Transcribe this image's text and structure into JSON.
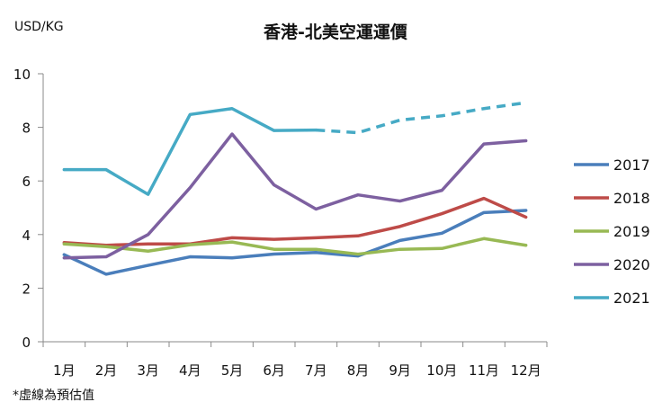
{
  "chart_data": {
    "type": "line",
    "title": "香港-北美空運運價",
    "ylabel": "USD/KG",
    "xlabel": "",
    "note": "*虛線為預估值",
    "categories": [
      "1月",
      "2月",
      "3月",
      "4月",
      "5月",
      "6月",
      "7月",
      "8月",
      "9月",
      "10月",
      "11月",
      "12月"
    ],
    "ylim": [
      0,
      10
    ],
    "yticks": [
      0,
      2,
      4,
      6,
      8,
      10
    ],
    "grid": false,
    "legend_position": "right",
    "series": [
      {
        "name": "2017",
        "color": "#4a7ebb",
        "values": [
          3.25,
          2.52,
          2.85,
          3.17,
          3.13,
          3.27,
          3.33,
          3.2,
          3.78,
          4.05,
          4.82,
          4.9
        ],
        "estimated_from": null
      },
      {
        "name": "2018",
        "color": "#be4b48",
        "values": [
          3.7,
          3.6,
          3.65,
          3.65,
          3.88,
          3.82,
          3.88,
          3.95,
          4.3,
          4.78,
          5.35,
          4.65
        ],
        "estimated_from": null
      },
      {
        "name": "2019",
        "color": "#98b954",
        "values": [
          3.65,
          3.55,
          3.38,
          3.62,
          3.72,
          3.45,
          3.45,
          3.27,
          3.45,
          3.48,
          3.85,
          3.6
        ],
        "estimated_from": null
      },
      {
        "name": "2020",
        "color": "#7d60a0",
        "values": [
          3.13,
          3.17,
          4.0,
          5.75,
          7.75,
          5.85,
          4.95,
          5.48,
          5.25,
          5.65,
          7.38,
          7.5
        ],
        "estimated_from": null
      },
      {
        "name": "2021",
        "color": "#46aac5",
        "values": [
          6.42,
          6.42,
          5.5,
          8.48,
          8.7,
          7.88,
          7.9,
          7.8,
          8.27,
          8.43,
          8.7,
          8.92
        ],
        "estimated_from": 6
      }
    ]
  }
}
